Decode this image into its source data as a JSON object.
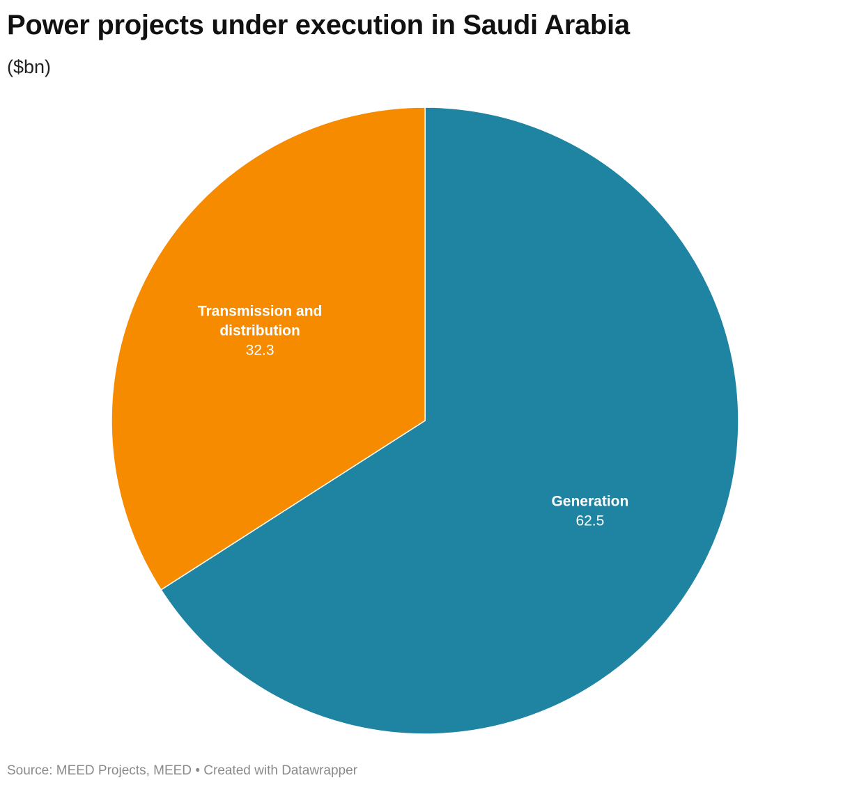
{
  "chart_data": {
    "type": "pie",
    "title": "Power projects under execution in Saudi Arabia",
    "subtitle": "($bn)",
    "slices": [
      {
        "name": "Generation",
        "value": 62.5,
        "value_label": "62.5",
        "color": "#1f83a2"
      },
      {
        "name_lines": [
          "Transmission and",
          "distribution"
        ],
        "value": 32.3,
        "value_label": "32.3",
        "color": "#f78b00"
      }
    ],
    "start": "top, clockwise"
  },
  "footer": {
    "source": "Source: MEED Projects, MEED",
    "separator": "•",
    "credit": "Created with Datawrapper"
  },
  "colors": {
    "slice_border": "#ffffff",
    "footer_text": "#8a8a8a"
  }
}
